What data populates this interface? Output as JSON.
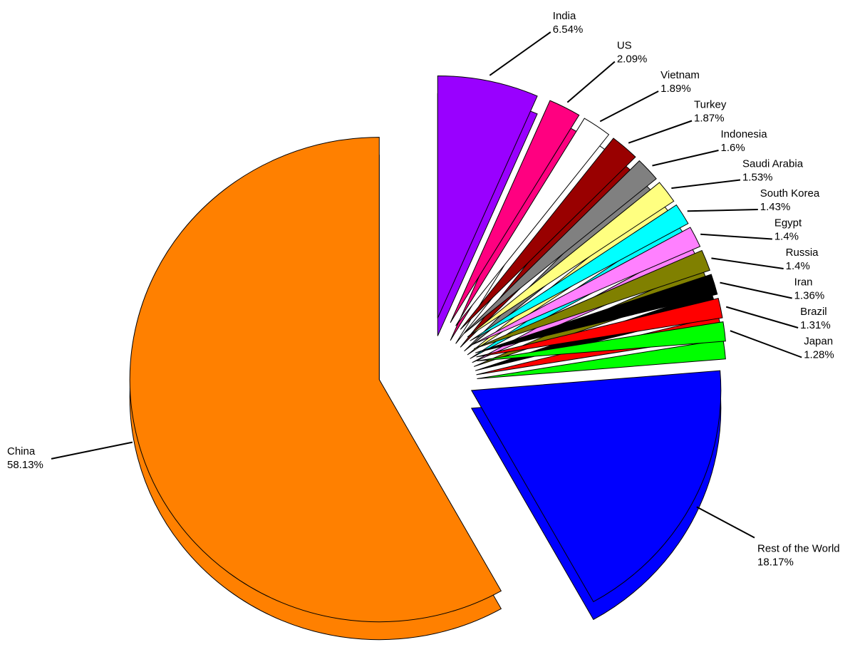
{
  "chart_data": {
    "type": "pie",
    "categories": [
      "India",
      "US",
      "Vietnam",
      "Turkey",
      "Indonesia",
      "Saudi Arabia",
      "South Korea",
      "Egypt",
      "Russia",
      "Iran",
      "Brazil",
      "Japan",
      "Rest of the World",
      "China"
    ],
    "values": [
      6.54,
      2.09,
      1.89,
      1.87,
      1.6,
      1.53,
      1.43,
      1.4,
      1.4,
      1.36,
      1.31,
      1.28,
      18.17,
      58.13
    ],
    "value_labels": [
      "6.54%",
      "2.09%",
      "1.89%",
      "1.87%",
      "1.6%",
      "1.53%",
      "1.43%",
      "1.4%",
      "1.4%",
      "1.36%",
      "1.31%",
      "1.28%",
      "18.17%",
      "58.13%"
    ],
    "colors": [
      "#9900ff",
      "#ff0080",
      "#ffffff",
      "#990000",
      "#808080",
      "#ffff80",
      "#00ffff",
      "#ff80ff",
      "#808000",
      "#000000",
      "#ff0000",
      "#00ff00",
      "#0000ff",
      "#ff8000"
    ]
  }
}
